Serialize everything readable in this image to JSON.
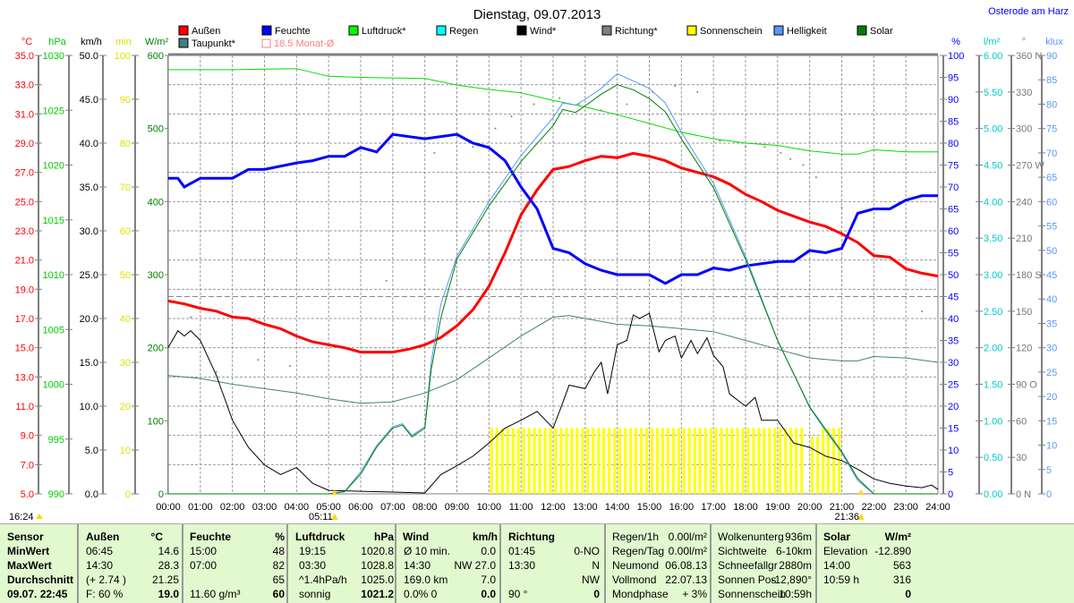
{
  "title": "Dienstag, 09.07.2013",
  "location": "Osterode am Harz",
  "legend": [
    {
      "label": "Außen",
      "color": "#ff0000"
    },
    {
      "label": "Feuchte",
      "color": "#0000ff"
    },
    {
      "label": "Luftdruck*",
      "color": "#00ff00"
    },
    {
      "label": "Regen",
      "color": "#00ffff"
    },
    {
      "label": "Wind*",
      "color": "#000000"
    },
    {
      "label": "Richtung*",
      "color": "#808080"
    },
    {
      "label": "Sonnenschein",
      "color": "#ffff00"
    },
    {
      "label": "Helligkeit",
      "color": "#5599ff"
    },
    {
      "label": "Solar",
      "color": "#008000"
    },
    {
      "label": "Taupunkt*",
      "color": "#408080"
    }
  ],
  "monthly_avg_label": "18.5 Monat-Ø",
  "day_length": "16:24",
  "sunrise": "05:11",
  "sunset": "21:36",
  "chart_data": {
    "type": "line",
    "title": "Dienstag, 09.07.2013",
    "x_ticks": [
      "00:00",
      "01:00",
      "02:00",
      "03:00",
      "04:00",
      "05:00",
      "06:00",
      "07:00",
      "08:00",
      "09:00",
      "10:00",
      "11:00",
      "12:00",
      "13:00",
      "14:00",
      "15:00",
      "16:00",
      "17:00",
      "18:00",
      "19:00",
      "20:00",
      "21:00",
      "22:00",
      "23:00",
      "24:00"
    ],
    "xlim": [
      0,
      24
    ],
    "grid": true,
    "legend_placement": "top",
    "axes": {
      "temp": {
        "unit": "°C",
        "color": "#ff0000",
        "min": 5,
        "max": 35,
        "side": "left",
        "ticks": [
          "35.0",
          "33.0",
          "31.0",
          "29.0",
          "27.0",
          "25.0",
          "23.0",
          "21.0",
          "19.0",
          "17.0",
          "15.0",
          "13.0",
          "11.0",
          "9.0",
          "7.0",
          "5.0"
        ]
      },
      "press": {
        "unit": "hPa",
        "color": "#00cc00",
        "min": 990,
        "max": 1030,
        "side": "left",
        "ticks": [
          "1030",
          "1025",
          "1020",
          "1015",
          "1010",
          "1005",
          "1000",
          "995",
          "990"
        ]
      },
      "wind": {
        "unit": "km/h",
        "color": "#000000",
        "min": 0,
        "max": 50,
        "side": "left",
        "ticks": [
          "50.0",
          "45.0",
          "40.0",
          "35.0",
          "30.0",
          "25.0",
          "20.0",
          "15.0",
          "10.0",
          "5.0",
          "0.0"
        ]
      },
      "min": {
        "unit": "min",
        "color": "#e0e000",
        "min": 0,
        "max": 100,
        "side": "left",
        "ticks": [
          "100",
          "90",
          "80",
          "70",
          "60",
          "50",
          "40",
          "30",
          "20",
          "10",
          "0"
        ]
      },
      "solar": {
        "unit": "W/m²",
        "color": "#008000",
        "min": 0,
        "max": 600,
        "side": "left",
        "ticks": [
          "600",
          "500",
          "400",
          "300",
          "200",
          "100",
          "0"
        ]
      },
      "hum": {
        "unit": "%",
        "color": "#0000ff",
        "min": 0,
        "max": 100,
        "side": "right",
        "ticks": [
          "100",
          "95",
          "90",
          "85",
          "80",
          "75",
          "70",
          "65",
          "60",
          "55",
          "50",
          "45",
          "40",
          "35",
          "30",
          "25",
          "20",
          "15",
          "10",
          "5",
          "0"
        ]
      },
      "rain": {
        "unit": "l/m²",
        "color": "#00cccc",
        "min": 0,
        "max": 6,
        "side": "right",
        "ticks": [
          "6.00",
          "5.50",
          "5.00",
          "4.50",
          "4.00",
          "3.50",
          "3.00",
          "2.50",
          "2.00",
          "1.50",
          "1.00",
          "0.50",
          "0.00"
        ]
      },
      "dir": {
        "unit": "°",
        "color": "#808080",
        "min": 0,
        "max": 360,
        "side": "right",
        "ticks": [
          "360 N",
          "330",
          "300",
          "270 W",
          "240",
          "210",
          "180 S",
          "150",
          "120",
          "90 O",
          "60",
          "30",
          "0 N"
        ]
      },
      "klux": {
        "unit": "klux",
        "color": "#5599ff",
        "min": 0,
        "max": 90,
        "side": "right",
        "ticks": [
          "90",
          "85",
          "80",
          "75",
          "70",
          "65",
          "60",
          "55",
          "50",
          "45",
          "40",
          "35",
          "30",
          "25",
          "20",
          "15",
          "10",
          "5",
          "0"
        ]
      }
    },
    "monthly_avg": {
      "axis": "temp",
      "value": 18.5
    },
    "series": [
      {
        "name": "Außen",
        "axis": "temp",
        "color": "#ff0000",
        "width": 3,
        "x": [
          0,
          0.5,
          1,
          1.5,
          2,
          2.5,
          3,
          3.5,
          4,
          4.5,
          5,
          5.5,
          6,
          6.5,
          7,
          7.5,
          8,
          8.5,
          9,
          9.5,
          10,
          10.5,
          11,
          11.5,
          12,
          12.5,
          13,
          13.5,
          14,
          14.5,
          15,
          15.5,
          16,
          16.5,
          17,
          17.5,
          18,
          18.5,
          19,
          19.5,
          20,
          20.5,
          21,
          21.5,
          22,
          22.5,
          23,
          23.5,
          24
        ],
        "y": [
          18.2,
          18.0,
          17.7,
          17.5,
          17.1,
          17.0,
          16.6,
          16.3,
          15.8,
          15.4,
          15.2,
          15.0,
          14.7,
          14.7,
          14.7,
          14.9,
          15.2,
          15.7,
          16.5,
          17.6,
          19.2,
          21.5,
          24.1,
          25.8,
          27.2,
          27.4,
          27.8,
          28.1,
          28.0,
          28.3,
          28.1,
          27.8,
          27.3,
          27.0,
          26.7,
          26.2,
          25.5,
          25.0,
          24.4,
          24.0,
          23.6,
          23.3,
          22.8,
          22.2,
          21.3,
          21.2,
          20.4,
          20.1,
          19.9
        ]
      },
      {
        "name": "Feuchte",
        "axis": "hum",
        "color": "#0000ff",
        "width": 3,
        "x": [
          0,
          0.3,
          0.5,
          1,
          2,
          2.5,
          3,
          4,
          4.5,
          5,
          5.5,
          6,
          6.5,
          7,
          8,
          9,
          9.5,
          10,
          10.5,
          11,
          11.5,
          12,
          12.5,
          13,
          13.5,
          14,
          14.5,
          15,
          15.5,
          16,
          16.5,
          17,
          17.5,
          18,
          19,
          19.5,
          20,
          20.5,
          21,
          21.5,
          22,
          22.5,
          23,
          23.5,
          24
        ],
        "y": [
          72,
          72,
          70,
          72,
          72,
          74,
          74,
          75.5,
          76,
          77,
          77,
          79,
          78,
          82,
          81,
          82,
          80,
          79,
          76,
          70,
          65,
          56,
          55,
          52.5,
          51,
          50,
          50,
          50,
          48,
          50,
          50,
          51.5,
          51,
          52,
          53,
          53,
          55.5,
          55,
          56,
          64,
          65,
          65,
          67,
          68,
          68
        ]
      },
      {
        "name": "Luftdruck*",
        "axis": "press",
        "color": "#00dd00",
        "width": 1,
        "x": [
          0,
          2,
          4,
          5,
          6,
          8,
          9,
          10,
          11,
          12,
          13,
          14,
          15,
          16,
          17,
          18,
          19,
          20,
          21,
          21.5,
          22,
          23,
          24
        ],
        "y": [
          1028.7,
          1028.7,
          1028.8,
          1028.1,
          1028.0,
          1027.9,
          1027.3,
          1026.9,
          1026.6,
          1025.9,
          1025.3,
          1024.6,
          1023.8,
          1023.0,
          1022.4,
          1022.0,
          1021.8,
          1021.3,
          1021.0,
          1021.0,
          1021.4,
          1021.2,
          1021.2
        ]
      },
      {
        "name": "Taupunkt*",
        "axis": "temp",
        "color": "#408080",
        "width": 1,
        "x": [
          0,
          1,
          2,
          3,
          4,
          5,
          6,
          7,
          8,
          9,
          10,
          11,
          12,
          12.5,
          13,
          14,
          15,
          16,
          17,
          18,
          19,
          20,
          21,
          21.5,
          22,
          23,
          24
        ],
        "y": [
          13.1,
          12.9,
          12.5,
          12.2,
          11.9,
          11.5,
          11.2,
          11.3,
          11.9,
          12.8,
          14.3,
          15.8,
          17.1,
          17.2,
          17.0,
          16.6,
          16.5,
          16.3,
          16.1,
          15.5,
          14.9,
          14.3,
          14.1,
          14.1,
          14.4,
          14.3,
          14.0
        ]
      },
      {
        "name": "Wind*",
        "axis": "wind",
        "color": "#000000",
        "width": 1,
        "x": [
          0,
          0.3,
          0.5,
          0.7,
          1,
          1.5,
          2,
          2.5,
          3,
          3.5,
          4,
          4.5,
          5,
          6,
          7,
          8,
          8.5,
          9,
          9.5,
          10,
          10.5,
          11,
          11.5,
          12,
          12.3,
          12.5,
          13,
          13.3,
          13.5,
          13.7,
          14,
          14.3,
          14.5,
          14.7,
          15,
          15.3,
          15.5,
          15.8,
          16,
          16.3,
          16.5,
          16.8,
          17,
          17.3,
          17.5,
          18,
          18.3,
          18.5,
          19,
          19.5,
          20,
          20.5,
          21,
          21.5,
          22,
          22.5,
          23,
          23.5,
          23.8,
          24
        ],
        "y": [
          16.7,
          18.6,
          18.0,
          18.6,
          17.5,
          13.5,
          8.4,
          5.3,
          3.3,
          2.2,
          3.0,
          1.2,
          0.4,
          0.3,
          0.2,
          0.1,
          2.2,
          3.2,
          4.3,
          5.8,
          7.5,
          8.4,
          9.4,
          7.5,
          10.4,
          12.4,
          12.0,
          14.0,
          15.0,
          11.4,
          17.0,
          17.5,
          20.4,
          20.0,
          20.6,
          16.2,
          17.5,
          18.0,
          15.5,
          17.5,
          16.0,
          17.8,
          15.8,
          14.5,
          11.4,
          10.0,
          11.0,
          8.4,
          8.4,
          5.8,
          5.3,
          4.3,
          3.8,
          2.8,
          1.7,
          1.2,
          0.9,
          0.7,
          1.0,
          0.5
        ]
      },
      {
        "name": "Helligkeit",
        "axis": "solar",
        "color": "#5599ff",
        "width": 1,
        "x": [
          0,
          5,
          5.5,
          6,
          6.5,
          7,
          7.3,
          7.6,
          8,
          8.2,
          8.5,
          9,
          10,
          11,
          12,
          12.3,
          12.7,
          13,
          13.5,
          14,
          14.5,
          15,
          15.5,
          16,
          17,
          18,
          19,
          20,
          20.5,
          21,
          21.5,
          22,
          24
        ],
        "y": [
          0,
          0,
          3,
          30,
          66,
          92,
          96,
          80,
          92,
          180,
          260,
          325,
          400,
          463,
          515,
          535,
          532,
          540,
          555,
          575,
          565,
          555,
          535,
          495,
          425,
          325,
          210,
          118,
          86,
          56,
          18,
          0,
          0
        ]
      },
      {
        "name": "Solar",
        "axis": "solar",
        "color": "#008000",
        "width": 1,
        "x": [
          0,
          5,
          5.5,
          6,
          6.5,
          7,
          7.3,
          7.6,
          8,
          8.2,
          8.5,
          9,
          10,
          11,
          12,
          12.3,
          12.7,
          13,
          13.5,
          14,
          14.5,
          15,
          15.5,
          16,
          17,
          18,
          19,
          20,
          20.5,
          21,
          21.5,
          22,
          24
        ],
        "y": [
          0,
          0,
          3,
          27,
          64,
          90,
          94,
          78,
          90,
          170,
          241,
          321,
          394,
          455,
          504,
          526,
          522,
          531,
          547,
          560,
          553,
          541,
          523,
          486,
          419,
          321,
          210,
          119,
          88,
          58,
          21,
          0,
          0
        ]
      }
    ],
    "sunshine": {
      "name": "Sonnenschein",
      "axis": "min",
      "color": "#ffff00",
      "x": [
        10.08,
        10.25,
        10.42,
        10.58,
        10.75,
        10.92,
        11.08,
        11.25,
        11.42,
        11.58,
        11.75,
        11.92,
        12.08,
        12.25,
        12.42,
        12.58,
        12.75,
        12.92,
        13.08,
        13.25,
        13.42,
        13.58,
        13.75,
        13.92,
        14.08,
        14.25,
        14.42,
        14.58,
        14.75,
        14.92,
        15.08,
        15.25,
        15.42,
        15.58,
        15.75,
        15.92,
        16.08,
        16.25,
        16.42,
        16.58,
        16.75,
        16.92,
        17.08,
        17.25,
        17.42,
        17.58,
        17.75,
        17.92,
        18.08,
        18.25,
        18.42,
        18.58,
        18.75,
        18.92,
        19.08,
        19.25,
        19.42,
        19.58,
        19.75,
        20.08,
        20.25,
        20.42,
        20.58,
        20.75,
        20.92
      ],
      "y": [
        15,
        15,
        15,
        15,
        15,
        15,
        15,
        15,
        15,
        15,
        15,
        15,
        15,
        15,
        15,
        15,
        15,
        15,
        15,
        15,
        15,
        15,
        15,
        15,
        15,
        15,
        15,
        15,
        15,
        15,
        15,
        15,
        15,
        15,
        15,
        15,
        15,
        15,
        15,
        15,
        15,
        15,
        15,
        15,
        15,
        15,
        15,
        15,
        15,
        15,
        15,
        15,
        15,
        15,
        15,
        15,
        15,
        15,
        15,
        13,
        13,
        15,
        15,
        15,
        15
      ]
    },
    "direction": {
      "name": "Richtung*",
      "axis": "dir",
      "color": "#808080",
      "x": [
        0.7,
        1.5,
        2.8,
        3.8,
        6.8,
        8.3,
        9.5,
        10.2,
        10.7,
        11.4,
        12.2,
        12.8,
        13.5,
        14.3,
        15.1,
        15.8,
        16.5,
        17.2,
        18,
        18.6,
        19.1,
        19.4,
        19.8,
        20.2,
        21,
        23.5
      ],
      "y": [
        145,
        100,
        110,
        105,
        175,
        280,
        285,
        300,
        310,
        320,
        325,
        320,
        315,
        320,
        330,
        335,
        330,
        290,
        285,
        285,
        280,
        275,
        270,
        260,
        235,
        150
      ]
    }
  },
  "table": {
    "headers": [
      "Sensor",
      "Außen",
      "°C",
      "Feuchte",
      "%",
      "Luftdruck",
      "hPa",
      "Wind",
      "km/h",
      "Richtung"
    ],
    "rows": [
      [
        "MinWert",
        "06:45",
        "14.6",
        "15:00",
        "48",
        "19:15",
        "1020.8",
        "Ø 10 min.",
        "0.0",
        "01:45",
        "0-NO"
      ],
      [
        "MaxWert",
        "14:30",
        "28.3",
        "07:00",
        "82",
        "03:30",
        "1028.8",
        "14:30",
        "NW 27.0",
        "13:30",
        "N"
      ],
      [
        "Durchschnitt",
        "(+ 2.74 )",
        "21.25",
        "",
        "65",
        "^1.4hPa/h",
        "1025.0",
        "169.0 km",
        "7.0",
        "",
        "NW"
      ],
      [
        "09.07. 22:45",
        "F: 60 %",
        "19.0",
        "11.60 g/m³",
        "60",
        "sonnig",
        "1021.2",
        "0.0% 0",
        "0.0",
        "90 °",
        "0"
      ]
    ],
    "info1": [
      [
        "Regen/1h",
        "0.00l/m²"
      ],
      [
        "Regen/Tag",
        "0.00l/m²"
      ],
      [
        "Neumond",
        "06.08.13"
      ],
      [
        "Vollmond",
        "22.07.13"
      ],
      [
        "Mondphase",
        "+ 3%"
      ]
    ],
    "info2": [
      [
        "Wolkenunterg",
        "936m"
      ],
      [
        "Sichtweite",
        "6-10km"
      ],
      [
        "Schneefallgr",
        "2880m"
      ],
      [
        "Sonnen Pos",
        "-12,890°"
      ],
      [
        "Sonnenschein",
        "10:59h"
      ]
    ],
    "solar": {
      "header": [
        "Solar",
        "W/m²"
      ],
      "rows": [
        [
          "Elevation",
          "-12.890"
        ],
        [
          "14:00",
          "563"
        ],
        [
          "10:59 h",
          "316"
        ],
        [
          "",
          "0"
        ]
      ]
    }
  }
}
